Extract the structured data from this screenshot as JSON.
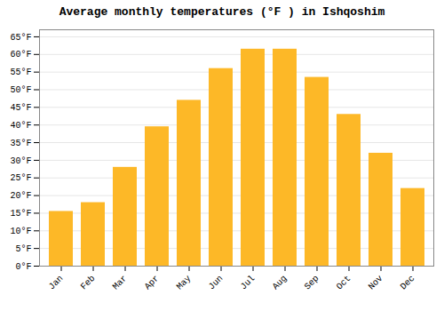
{
  "chart_data": {
    "type": "bar",
    "title": "Average monthly temperatures (°F ) in Ishqoshim",
    "categories": [
      "Jan",
      "Feb",
      "Mar",
      "Apr",
      "May",
      "Jun",
      "Jul",
      "Aug",
      "Sep",
      "Oct",
      "Nov",
      "Dec"
    ],
    "values": [
      15.5,
      18.0,
      28.0,
      39.5,
      47.0,
      56.0,
      61.5,
      61.5,
      53.5,
      43.0,
      32.0,
      22.0
    ],
    "color": "#FDB827",
    "ylim": [
      0,
      67
    ],
    "yticks": [
      {
        "value": 0,
        "label": "0°F"
      },
      {
        "value": 5,
        "label": "5°F"
      },
      {
        "value": 10,
        "label": "10°F"
      },
      {
        "value": 15,
        "label": "15°F"
      },
      {
        "value": 20,
        "label": "20°F"
      },
      {
        "value": 25,
        "label": "25°F"
      },
      {
        "value": 30,
        "label": "30°F"
      },
      {
        "value": 35,
        "label": "35°F"
      },
      {
        "value": 40,
        "label": "40°F"
      },
      {
        "value": 45,
        "label": "45°F"
      },
      {
        "value": 50,
        "label": "50°F"
      },
      {
        "value": 55,
        "label": "55°F"
      },
      {
        "value": 60,
        "label": "60°F"
      },
      {
        "value": 65,
        "label": "65°F"
      }
    ],
    "grid": true
  }
}
